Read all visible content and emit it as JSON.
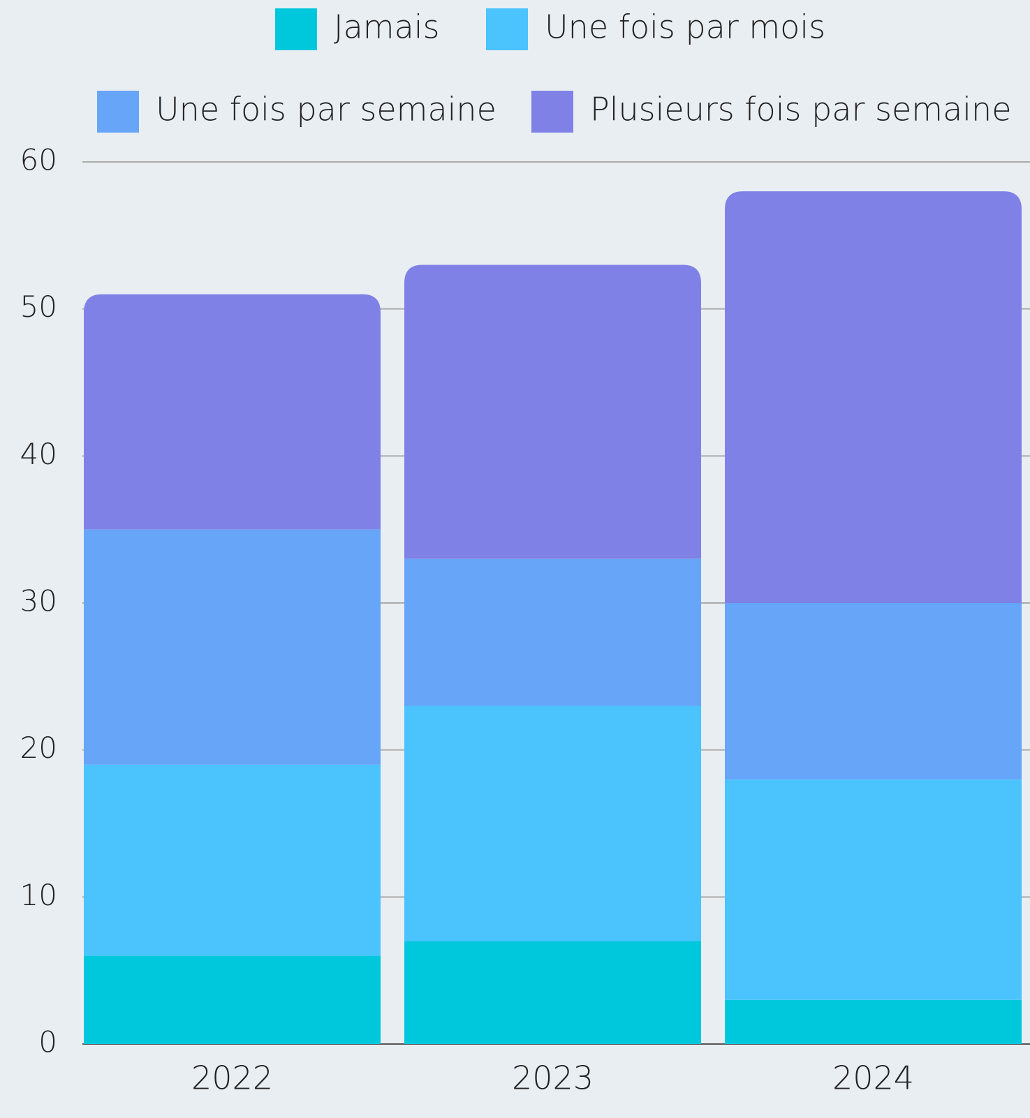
{
  "chart_data": {
    "type": "stacked_bar",
    "categories": [
      "2022",
      "2023",
      "2024"
    ],
    "series": [
      {
        "name": "Jamais",
        "color": "#00c8dc",
        "values": [
          6,
          7,
          3
        ]
      },
      {
        "name": "Une fois par mois",
        "color": "#4bc3fd",
        "values": [
          13,
          16,
          15
        ]
      },
      {
        "name": "Une fois par semaine",
        "color": "#66a5f8",
        "values": [
          16,
          10,
          12
        ]
      },
      {
        "name": "Plusieurs fois par semaine",
        "color": "#7f81e6",
        "values": [
          16,
          20,
          28
        ]
      }
    ],
    "ylim": [
      0,
      60
    ],
    "yticks": [
      0,
      10,
      20,
      30,
      40,
      50,
      60
    ],
    "grid": true
  }
}
